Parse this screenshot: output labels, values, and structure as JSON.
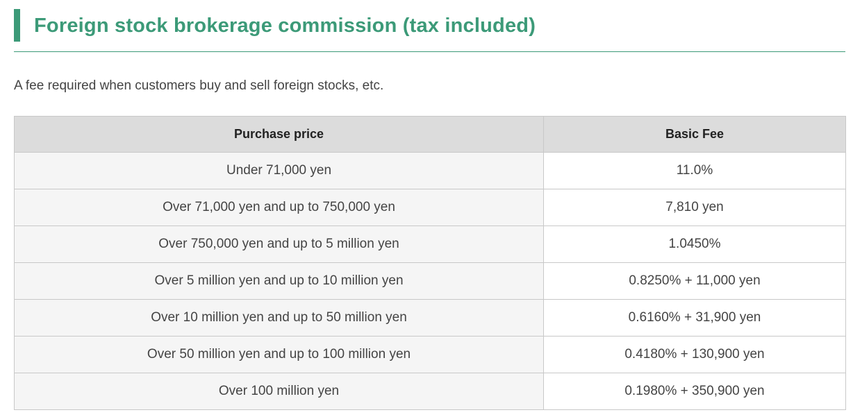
{
  "heading": {
    "title": "Foreign stock brokerage commission (tax included)",
    "accent_color": "#3c9a78"
  },
  "intro": "A fee required when customers buy and sell foreign stocks, etc.",
  "table": {
    "headers": {
      "purchase_price": "Purchase price",
      "basic_fee": "Basic Fee"
    },
    "rows": [
      {
        "price": "Under 71,000 yen",
        "fee": "11.0%"
      },
      {
        "price": "Over 71,000 yen and up to 750,000 yen",
        "fee": "7,810 yen"
      },
      {
        "price": "Over 750,000 yen and up to 5 million yen",
        "fee": "1.0450%"
      },
      {
        "price": "Over 5 million yen and up to 10 million yen",
        "fee": "0.8250% + 11,000 yen"
      },
      {
        "price": "Over 10 million yen and up to 50 million yen",
        "fee": "0.6160% + 31,900 yen"
      },
      {
        "price": "Over 50 million yen and up to 100 million yen",
        "fee": "0.4180% + 130,900 yen"
      },
      {
        "price": "Over 100 million yen",
        "fee": "0.1980% + 350,900 yen"
      }
    ]
  }
}
